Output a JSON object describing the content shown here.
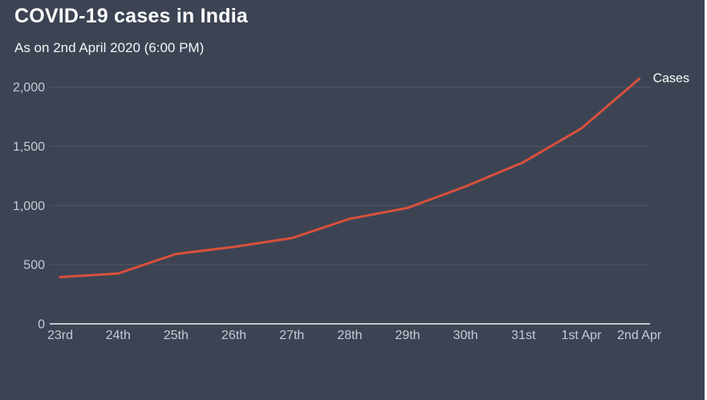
{
  "header": {
    "title": "COVID-19 cases in India",
    "subtitle": "As on 2nd April 2020 (6:00 PM)"
  },
  "chart_data": {
    "type": "line",
    "title": "COVID-19 cases in India",
    "subtitle": "As on 2nd April 2020 (6:00 PM)",
    "series_label": "Cases",
    "categories": [
      "23rd",
      "24th",
      "25th",
      "26th",
      "27th",
      "28th",
      "29th",
      "30th",
      "31st",
      "1st Apr",
      "2nd Apr"
    ],
    "values": [
      395,
      425,
      590,
      650,
      724,
      887,
      979,
      1160,
      1365,
      1650,
      2069
    ],
    "y_ticks": [
      0,
      500,
      1000,
      1500,
      2000
    ],
    "y_tick_labels": [
      "0",
      "500",
      "1,000",
      "1,500",
      "2,000"
    ],
    "ylim": [
      0,
      2070
    ],
    "xlabel": "",
    "ylabel": "",
    "grid": true,
    "legend_position": "end-of-line-right",
    "line_color": "#d8503c"
  },
  "colors": {
    "background": "#3c4454",
    "accent": "#d8503c",
    "text_primary": "#ffffff",
    "text_secondary": "#c5cad3",
    "gridline": "#4e5667",
    "baseline": "#eef0f3"
  }
}
